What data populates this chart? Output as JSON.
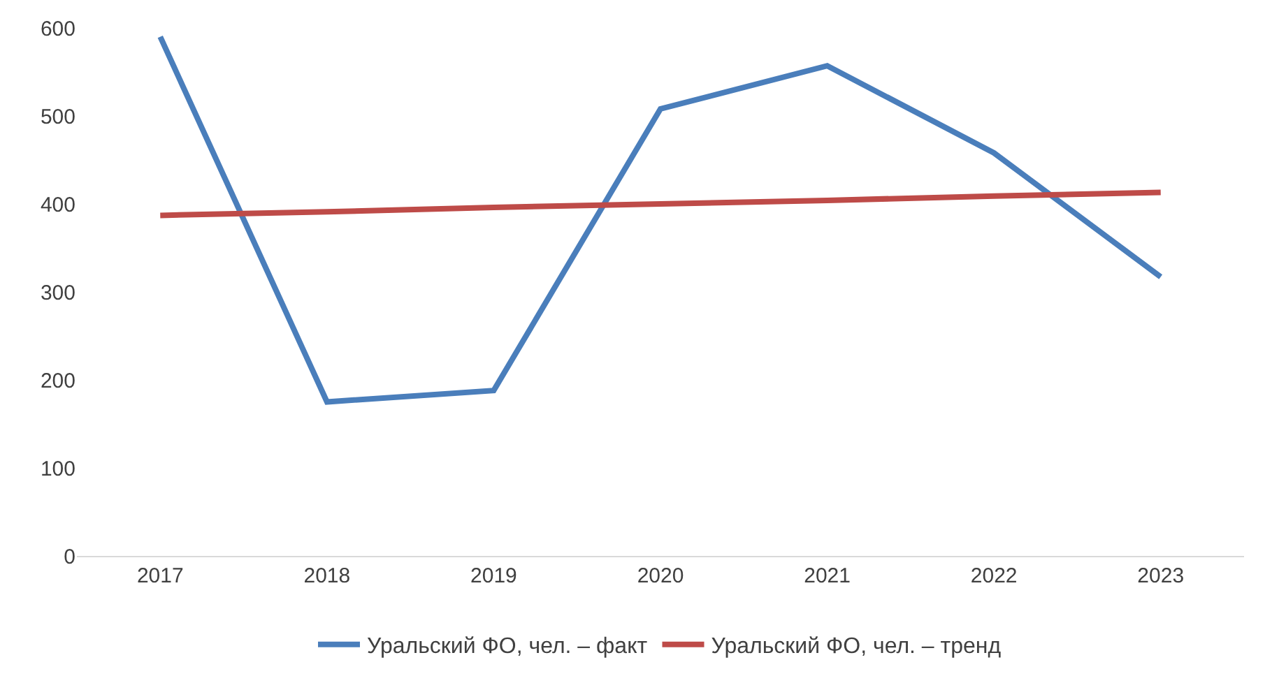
{
  "chart_data": {
    "type": "line",
    "categories": [
      "2017",
      "2018",
      "2019",
      "2020",
      "2021",
      "2022",
      "2023"
    ],
    "series": [
      {
        "name": "Уральский ФО, чел. – факт",
        "color": "#4a7ebb",
        "values": [
          590,
          175,
          188,
          508,
          557,
          458,
          317
        ]
      },
      {
        "name": "Уральский ФО, чел. – тренд",
        "color": "#be4b48",
        "values": [
          387,
          391,
          396,
          400,
          404,
          409,
          413
        ]
      }
    ],
    "ylim": [
      0,
      600
    ],
    "yticks": [
      0,
      100,
      200,
      300,
      400,
      500,
      600
    ],
    "grid": false,
    "legend": "bottom",
    "marker": "none",
    "line_style": "solid"
  }
}
